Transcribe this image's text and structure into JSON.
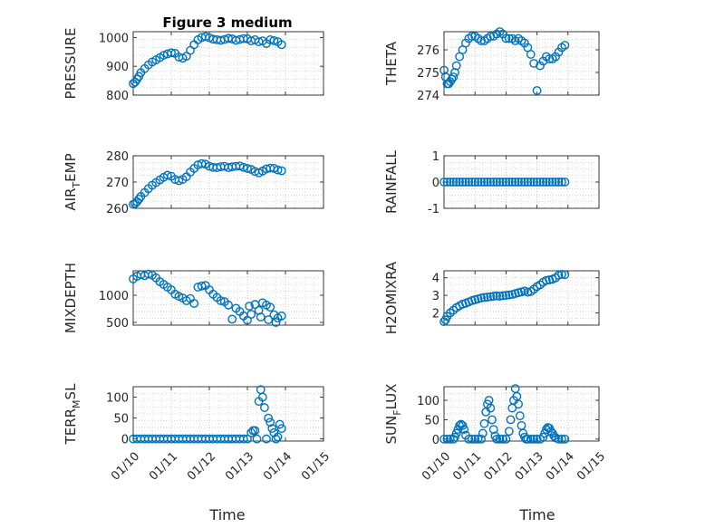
{
  "figure": {
    "title": "Figure 3 medium",
    "xlabel": "Time"
  },
  "style": {
    "marker_color": "#0072BD",
    "axis_color": "#262626",
    "grid_color": "#b0b0b0"
  },
  "chart_data": [
    {
      "type": "scatter",
      "ylabel": "PRESSURE",
      "ylabel_parts": [
        "PRESSURE"
      ],
      "xlim": [
        0,
        5
      ],
      "xticks": [],
      "xticklabels": [],
      "ylim": [
        800,
        1020
      ],
      "yticks": [
        800,
        900,
        1000
      ],
      "yticklabels": [
        "800",
        "900",
        "1000"
      ],
      "x": [
        0,
        0.05,
        0.1,
        0.15,
        0.2,
        0.3,
        0.4,
        0.5,
        0.6,
        0.7,
        0.8,
        0.9,
        1.0,
        1.1,
        1.2,
        1.3,
        1.4,
        1.5,
        1.6,
        1.7,
        1.8,
        1.9,
        2.0,
        2.1,
        2.2,
        2.3,
        2.4,
        2.5,
        2.6,
        2.7,
        2.8,
        2.9,
        3.0,
        3.1,
        3.2,
        3.3,
        3.4,
        3.5,
        3.6,
        3.7,
        3.8,
        3.9
      ],
      "y": [
        840,
        845,
        855,
        865,
        878,
        892,
        905,
        915,
        922,
        930,
        938,
        943,
        947,
        945,
        932,
        928,
        935,
        955,
        975,
        992,
        1000,
        1003,
        999,
        994,
        992,
        990,
        993,
        997,
        995,
        990,
        993,
        996,
        995,
        988,
        992,
        985,
        988,
        979,
        992,
        989,
        985,
        975
      ]
    },
    {
      "type": "scatter",
      "ylabel": "THETA",
      "ylabel_parts": [
        "THETA"
      ],
      "xlim": [
        0,
        5
      ],
      "xticks": [],
      "xticklabels": [],
      "ylim": [
        274,
        276.8
      ],
      "yticks": [
        274,
        275,
        276
      ],
      "yticklabels": [
        "274",
        "275",
        "276"
      ],
      "x": [
        0,
        0.05,
        0.1,
        0.15,
        0.2,
        0.25,
        0.3,
        0.35,
        0.4,
        0.5,
        0.6,
        0.7,
        0.8,
        0.9,
        1.0,
        1.1,
        1.2,
        1.3,
        1.4,
        1.5,
        1.6,
        1.7,
        1.8,
        1.9,
        2.0,
        2.1,
        2.2,
        2.3,
        2.4,
        2.5,
        2.6,
        2.7,
        2.8,
        2.9,
        3.0,
        3.1,
        3.2,
        3.3,
        3.4,
        3.5,
        3.6,
        3.7,
        3.8,
        3.9
      ],
      "y": [
        275.1,
        274.8,
        274.5,
        274.5,
        274.6,
        274.7,
        274.8,
        275.0,
        275.3,
        275.7,
        276.0,
        276.3,
        276.5,
        276.6,
        276.6,
        276.5,
        276.4,
        276.4,
        276.5,
        276.6,
        276.6,
        276.7,
        276.8,
        276.7,
        276.5,
        276.5,
        276.5,
        276.4,
        276.5,
        276.4,
        276.3,
        276.1,
        275.8,
        275.4,
        274.2,
        275.3,
        275.5,
        275.7,
        275.6,
        275.6,
        275.7,
        275.9,
        276.1,
        276.2
      ]
    },
    {
      "type": "scatter",
      "ylabel": "AIR_TEMP",
      "ylabel_parts": [
        "AIR",
        "T",
        "EMP"
      ],
      "xlim": [
        0,
        5
      ],
      "xticks": [],
      "xticklabels": [],
      "ylim": [
        260,
        280
      ],
      "yticks": [
        260,
        270,
        280
      ],
      "yticklabels": [
        "260",
        "270",
        "280"
      ],
      "x": [
        0,
        0.05,
        0.1,
        0.15,
        0.2,
        0.3,
        0.4,
        0.5,
        0.6,
        0.7,
        0.8,
        0.9,
        1.0,
        1.1,
        1.2,
        1.3,
        1.4,
        1.5,
        1.6,
        1.7,
        1.8,
        1.9,
        2.0,
        2.1,
        2.2,
        2.3,
        2.4,
        2.5,
        2.6,
        2.7,
        2.8,
        2.9,
        3.0,
        3.1,
        3.2,
        3.3,
        3.4,
        3.5,
        3.6,
        3.7,
        3.8,
        3.9
      ],
      "y": [
        261.5,
        261.8,
        262.5,
        263.5,
        264.5,
        266,
        267.5,
        268.8,
        269.8,
        270.8,
        271.8,
        272.6,
        272.2,
        271.0,
        270.5,
        271.0,
        272.0,
        273.8,
        275.2,
        276.5,
        277.0,
        276.8,
        276.0,
        275.6,
        275.5,
        275.8,
        276.0,
        275.5,
        275.8,
        276.0,
        276.1,
        275.6,
        275.2,
        274.8,
        274.0,
        273.5,
        274.2,
        275.0,
        275.3,
        275.2,
        274.6,
        274.3
      ]
    },
    {
      "type": "scatter",
      "ylabel": "RAINFALL",
      "ylabel_parts": [
        "RAINFALL"
      ],
      "xlim": [
        0,
        5
      ],
      "xticks": [],
      "xticklabels": [],
      "ylim": [
        -1,
        1
      ],
      "yticks": [
        -1,
        0,
        1
      ],
      "yticklabels": [
        "-1",
        "0",
        "1"
      ],
      "x": [
        0,
        0.1,
        0.2,
        0.3,
        0.4,
        0.5,
        0.6,
        0.7,
        0.8,
        0.9,
        1.0,
        1.1,
        1.2,
        1.3,
        1.4,
        1.5,
        1.6,
        1.7,
        1.8,
        1.9,
        2.0,
        2.1,
        2.2,
        2.3,
        2.4,
        2.5,
        2.6,
        2.7,
        2.8,
        2.9,
        3.0,
        3.1,
        3.2,
        3.3,
        3.4,
        3.5,
        3.6,
        3.7,
        3.8,
        3.9
      ],
      "y": [
        0,
        0,
        0,
        0,
        0,
        0,
        0,
        0,
        0,
        0,
        0,
        0,
        0,
        0,
        0,
        0,
        0,
        0,
        0,
        0,
        0,
        0,
        0,
        0,
        0,
        0,
        0,
        0,
        0,
        0,
        0,
        0,
        0,
        0,
        0,
        0,
        0,
        0,
        0,
        0
      ]
    },
    {
      "type": "scatter",
      "ylabel": "MIXDEPTH",
      "ylabel_parts": [
        "MIXDEPTH"
      ],
      "xlim": [
        0,
        5
      ],
      "xticks": [],
      "xticklabels": [],
      "ylim": [
        450,
        1450
      ],
      "yticks": [
        500,
        1000
      ],
      "yticklabels": [
        "500",
        "1000"
      ],
      "x": [
        0,
        0.1,
        0.2,
        0.3,
        0.4,
        0.5,
        0.6,
        0.7,
        0.8,
        0.9,
        1.0,
        1.1,
        1.2,
        1.3,
        1.4,
        1.5,
        1.6,
        1.7,
        1.8,
        1.9,
        2.0,
        2.1,
        2.2,
        2.3,
        2.4,
        2.5,
        2.6,
        2.7,
        2.8,
        2.9,
        3.0,
        3.05,
        3.1,
        3.2,
        3.3,
        3.35,
        3.4,
        3.5,
        3.55,
        3.6,
        3.7,
        3.75,
        3.8,
        3.9
      ],
      "y": [
        1300,
        1350,
        1380,
        1360,
        1390,
        1370,
        1320,
        1250,
        1200,
        1150,
        1100,
        1020,
        980,
        950,
        900,
        940,
        850,
        1150,
        1170,
        1180,
        1100,
        1020,
        960,
        900,
        880,
        820,
        560,
        760,
        700,
        620,
        540,
        800,
        650,
        830,
        720,
        600,
        860,
        820,
        550,
        780,
        640,
        500,
        580,
        620
      ]
    },
    {
      "type": "scatter",
      "ylabel": "H2OMIXRA",
      "ylabel_parts": [
        "H2OMIXRA"
      ],
      "xlim": [
        0,
        5
      ],
      "xticks": [],
      "xticklabels": [],
      "ylim": [
        1.3,
        4.4
      ],
      "yticks": [
        2,
        3,
        4
      ],
      "yticklabels": [
        "2",
        "3",
        "4"
      ],
      "x": [
        0,
        0.05,
        0.1,
        0.2,
        0.3,
        0.4,
        0.5,
        0.6,
        0.7,
        0.8,
        0.9,
        1.0,
        1.1,
        1.2,
        1.3,
        1.4,
        1.5,
        1.6,
        1.7,
        1.8,
        1.9,
        2.0,
        2.1,
        2.2,
        2.3,
        2.4,
        2.5,
        2.6,
        2.7,
        2.8,
        2.9,
        3.0,
        3.1,
        3.2,
        3.3,
        3.4,
        3.5,
        3.6,
        3.7,
        3.8,
        3.9
      ],
      "y": [
        1.5,
        1.6,
        1.8,
        2.0,
        2.15,
        2.3,
        2.4,
        2.5,
        2.55,
        2.62,
        2.7,
        2.75,
        2.8,
        2.85,
        2.88,
        2.9,
        2.92,
        2.95,
        2.97,
        2.95,
        2.98,
        3.0,
        3.02,
        3.05,
        3.1,
        3.15,
        3.2,
        3.25,
        3.18,
        3.22,
        3.35,
        3.5,
        3.6,
        3.75,
        3.85,
        3.88,
        3.92,
        4.0,
        4.15,
        4.2,
        4.18
      ]
    },
    {
      "type": "scatter",
      "ylabel": "TERR_MSL",
      "ylabel_parts": [
        "TERR",
        "M",
        "SL"
      ],
      "xlim": [
        0,
        5
      ],
      "xticks": [
        0,
        1,
        2,
        3,
        4,
        5
      ],
      "xticklabels": [
        "01/10",
        "01/11",
        "01/12",
        "01/13",
        "01/14",
        "01/15"
      ],
      "ylim": [
        -5,
        125
      ],
      "yticks": [
        0,
        50,
        100
      ],
      "yticklabels": [
        "0",
        "50",
        "100"
      ],
      "x": [
        0,
        0.1,
        0.2,
        0.3,
        0.4,
        0.5,
        0.6,
        0.7,
        0.8,
        0.9,
        1.0,
        1.1,
        1.2,
        1.3,
        1.4,
        1.5,
        1.6,
        1.7,
        1.8,
        1.9,
        2.0,
        2.1,
        2.2,
        2.3,
        2.4,
        2.5,
        2.6,
        2.7,
        2.8,
        2.9,
        3.0,
        3.1,
        3.15,
        3.2,
        3.25,
        3.3,
        3.35,
        3.4,
        3.45,
        3.5,
        3.55,
        3.6,
        3.65,
        3.7,
        3.75,
        3.8,
        3.85,
        3.9
      ],
      "y": [
        0,
        0,
        0,
        0,
        0,
        0,
        0,
        0,
        0,
        0,
        0,
        0,
        0,
        0,
        0,
        0,
        0,
        0,
        0,
        0,
        0,
        0,
        0,
        0,
        0,
        0,
        0,
        0,
        0,
        0,
        0,
        15,
        20,
        20,
        0,
        90,
        118,
        100,
        75,
        0,
        50,
        40,
        25,
        15,
        0,
        5,
        35,
        25
      ]
    },
    {
      "type": "scatter",
      "ylabel": "SUN_FLUX",
      "ylabel_parts": [
        "SUN",
        "F",
        "LUX"
      ],
      "xlim": [
        0,
        5
      ],
      "xticks": [
        0,
        1,
        2,
        3,
        4,
        5
      ],
      "xticklabels": [
        "01/10",
        "01/11",
        "01/12",
        "01/13",
        "01/14",
        "01/15"
      ],
      "ylim": [
        -5,
        135
      ],
      "yticks": [
        0,
        50,
        100
      ],
      "yticklabels": [
        "0",
        "50",
        "100"
      ],
      "x": [
        0,
        0.1,
        0.2,
        0.3,
        0.35,
        0.4,
        0.45,
        0.5,
        0.55,
        0.6,
        0.65,
        0.7,
        0.8,
        0.9,
        1.0,
        1.1,
        1.2,
        1.25,
        1.3,
        1.35,
        1.4,
        1.45,
        1.5,
        1.55,
        1.6,
        1.65,
        1.7,
        1.8,
        1.9,
        2.0,
        2.1,
        2.15,
        2.2,
        2.25,
        2.3,
        2.35,
        2.4,
        2.45,
        2.5,
        2.55,
        2.6,
        2.65,
        2.7,
        2.8,
        2.9,
        3.0,
        3.1,
        3.2,
        3.25,
        3.3,
        3.35,
        3.4,
        3.45,
        3.5,
        3.55,
        3.6,
        3.7,
        3.8,
        3.9
      ],
      "y": [
        0,
        0,
        0,
        0,
        5,
        15,
        25,
        35,
        38,
        35,
        25,
        10,
        0,
        0,
        0,
        0,
        0,
        15,
        40,
        70,
        90,
        100,
        80,
        50,
        25,
        8,
        0,
        0,
        0,
        0,
        20,
        50,
        80,
        100,
        130,
        110,
        90,
        60,
        35,
        15,
        5,
        0,
        0,
        0,
        0,
        0,
        0,
        5,
        15,
        25,
        30,
        28,
        20,
        15,
        8,
        3,
        0,
        0,
        0
      ]
    }
  ]
}
